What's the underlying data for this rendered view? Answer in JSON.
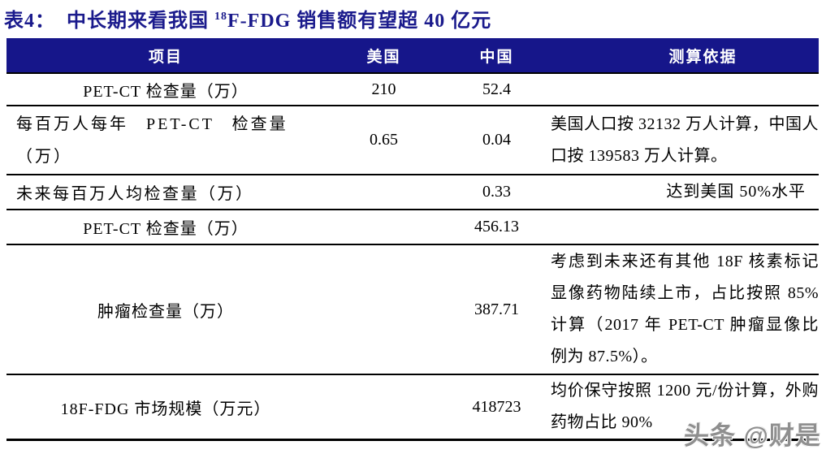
{
  "title": {
    "label": "表4：",
    "part1": "中长期来看我国 ",
    "superscript": "18",
    "part2": "F-FDG 销售额有望超 40 亿元"
  },
  "table": {
    "columns": [
      "项目",
      "美国",
      "中国",
      "测算依据"
    ],
    "rows": [
      {
        "item": "PET-CT 检查量（万）",
        "us": "210",
        "cn": "52.4",
        "basis": ""
      },
      {
        "item": "每百万人每年 PET-CT 检查量\n（万）",
        "us": "0.65",
        "cn": "0.04",
        "basis": "美国人口按 32132 万人计算，中国人口按 139583 万人计算。"
      },
      {
        "item": "未来每百万人均检查量（万）",
        "us": "",
        "cn": "0.33",
        "basis": "达到美国 50%水平"
      },
      {
        "item": "PET-CT 检查量（万）",
        "us": "",
        "cn": "456.13",
        "basis": ""
      },
      {
        "item": "肿瘤检查量（万）",
        "us": "",
        "cn": "387.71",
        "basis": "考虑到未来还有其他 18F 核素标记显像药物陆续上市，占比按照 85%计算（2017 年 PET-CT 肿瘤显像比例为 87.5%）。"
      },
      {
        "item": "18F-FDG 市场规模（万元）",
        "us": "",
        "cn": "418723",
        "basis": "均价保守按照 1200 元/份计算，外购药物占比 90%"
      }
    ]
  },
  "watermark": "头条 @财是",
  "colors": {
    "header_bg": "#16168A",
    "title_color": "#1A1A8C",
    "border_color": "#000000",
    "watermark_color": "#8F8F8F"
  }
}
